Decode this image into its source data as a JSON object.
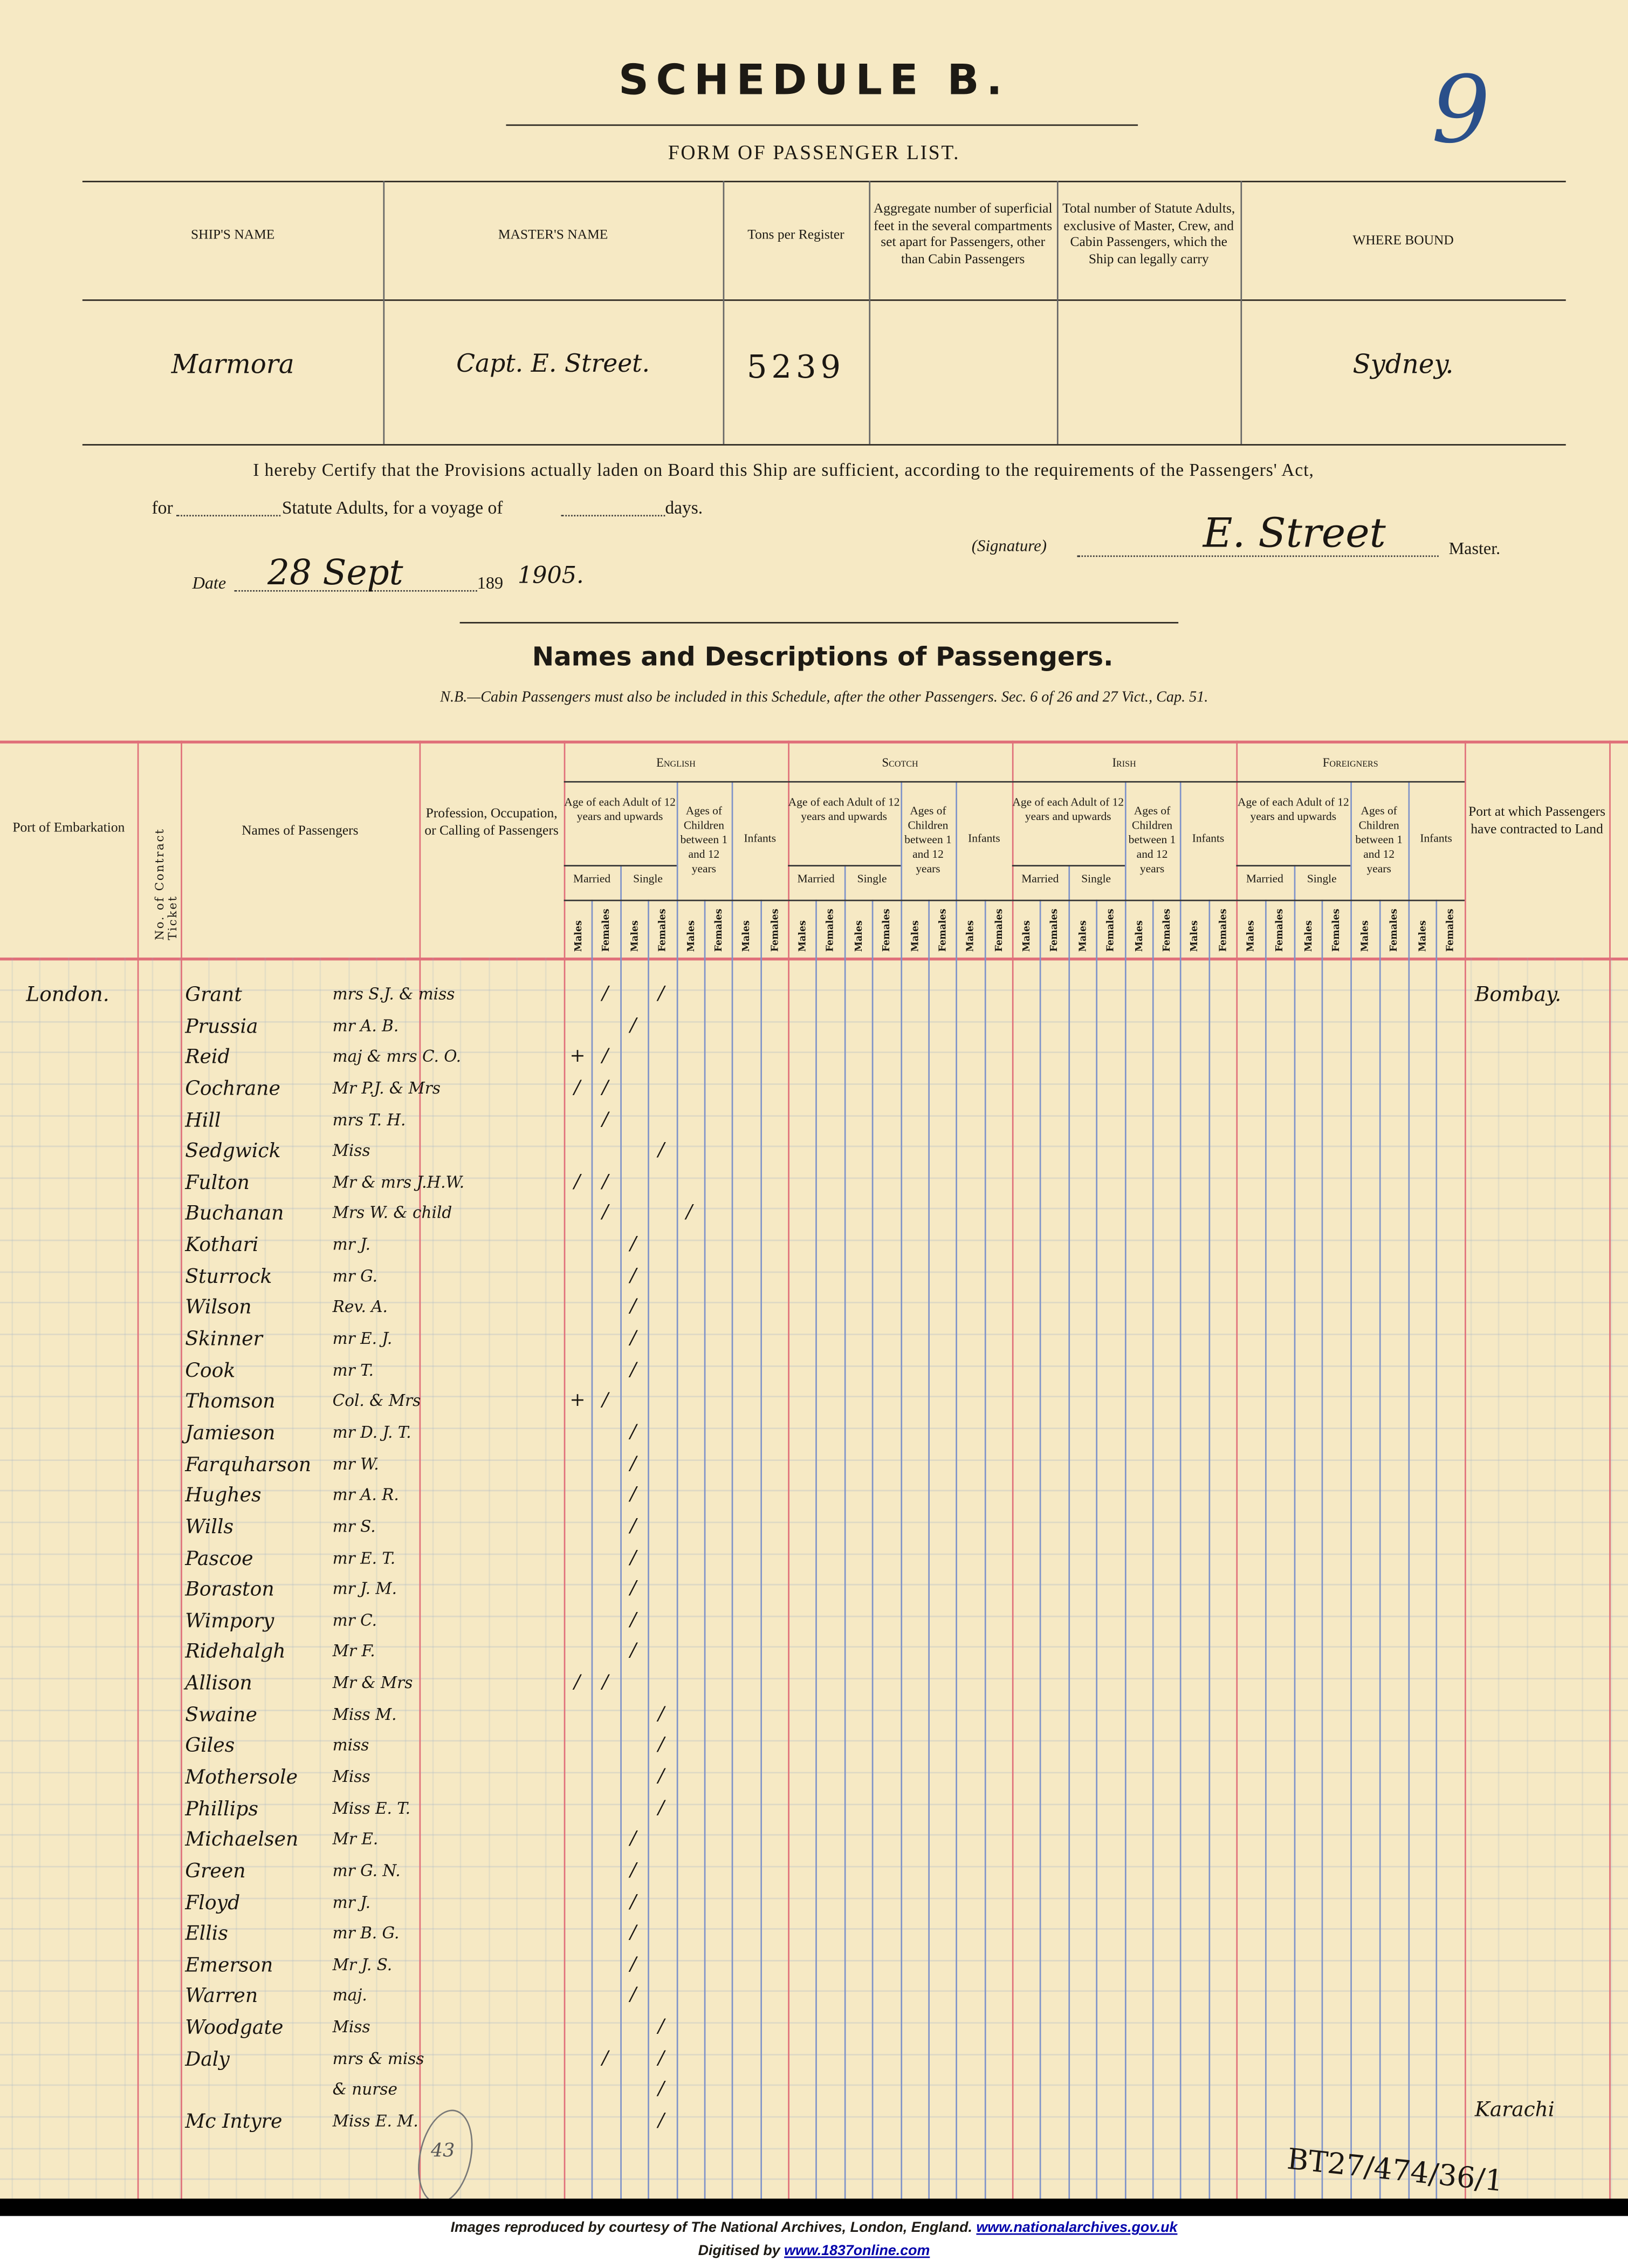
{
  "header": {
    "title": "SCHEDULE B.",
    "subtitle": "FORM OF PASSENGER LIST.",
    "folio_number": "9"
  },
  "ship_table": {
    "columns": [
      "SHIP'S NAME",
      "MASTER'S NAME",
      "Tons per Register",
      "Aggregate number of superficial feet in the several compartments set apart for Passengers, other than Cabin Passengers",
      "Total number of Statute Adults, exclusive of Master, Crew, and Cabin Passengers, which the Ship can legally carry",
      "WHERE BOUND"
    ],
    "values": [
      "Marmora",
      "Capt. E. Street.",
      "5239",
      "",
      "",
      "Sydney."
    ]
  },
  "certificate": {
    "line1": "I hereby Certify that the Provisions actually laden on Board this Ship are sufficient, according to the requirements of the Passengers' Act,",
    "for_label": "for",
    "statute_label": "Statute Adults, for a voyage of",
    "days_label": "days.",
    "signature_label": "(Signature)",
    "signature": "E. Street",
    "master_label": "Master.",
    "date_label": "Date",
    "date_value": "28 Sept",
    "year_prefix": "189",
    "year_value": "1905."
  },
  "passengers_section": {
    "title": "Names and Descriptions of Passengers.",
    "note": "N.B.—Cabin Passengers must also be included in this Schedule, after the other Passengers.  Sec. 6 of 26 and 27 Vict., Cap. 51."
  },
  "table_headers": {
    "port_embarkation": "Port of Embarkation",
    "ticket": "No. of Contract Ticket",
    "names": "Names of Passengers",
    "profession": "Profession, Occupation, or Calling of Passengers",
    "groups": [
      "English",
      "Scotch",
      "Irish",
      "Foreigners"
    ],
    "adult": "Age of each Adult of 12 years and upwards",
    "children": "Ages of Children between 1 and 12 years",
    "infants": "Infants",
    "married": "Married",
    "single": "Single",
    "males": "Males",
    "females": "Females",
    "port_land": "Port at which Passengers have contracted to Land"
  },
  "passengers": [
    {
      "port": "London.",
      "surname": "Grant",
      "given": "mrs S.J. & miss",
      "english": [
        1,
        3
      ],
      "land": "Bombay."
    },
    {
      "surname": "Prussia",
      "given": "mr A. B.",
      "english": [
        2
      ]
    },
    {
      "surname": "Reid",
      "given": "maj & mrs C. O.",
      "english": [
        1
      ],
      "struck": [
        0
      ]
    },
    {
      "surname": "Cochrane",
      "given": "Mr P.J. & Mrs",
      "english": [
        0,
        1
      ]
    },
    {
      "surname": "Hill",
      "given": "mrs T. H.",
      "english": [
        1
      ]
    },
    {
      "surname": "Sedgwick",
      "given": "Miss",
      "english": [
        3
      ]
    },
    {
      "surname": "Fulton",
      "given": "Mr & mrs J.H.W.",
      "english": [
        0,
        1
      ]
    },
    {
      "surname": "Buchanan",
      "given": "Mrs W. & child",
      "english": [
        1,
        4
      ]
    },
    {
      "surname": "Kothari",
      "given": "mr J.",
      "english": [
        2
      ]
    },
    {
      "surname": "Sturrock",
      "given": "mr G.",
      "english": [
        2
      ]
    },
    {
      "surname": "Wilson",
      "given": "Rev. A.",
      "english": [
        2
      ]
    },
    {
      "surname": "Skinner",
      "given": "mr E. J.",
      "english": [
        2
      ]
    },
    {
      "surname": "Cook",
      "given": "mr T.",
      "english": [
        2
      ]
    },
    {
      "surname": "Thomson",
      "given": "Col. & Mrs",
      "english": [
        1
      ],
      "struck": [
        0
      ]
    },
    {
      "surname": "Jamieson",
      "given": "mr D. J. T.",
      "english": [
        2
      ]
    },
    {
      "surname": "Farquharson",
      "given": "mr W.",
      "english": [
        2
      ]
    },
    {
      "surname": "Hughes",
      "given": "mr A. R.",
      "english": [
        2
      ]
    },
    {
      "surname": "Wills",
      "given": "mr S.",
      "english": [
        2
      ]
    },
    {
      "surname": "Pascoe",
      "given": "mr E. T.",
      "english": [
        2
      ]
    },
    {
      "surname": "Boraston",
      "given": "mr J. M.",
      "english": [
        2
      ]
    },
    {
      "surname": "Wimpory",
      "given": "mr C.",
      "english": [
        2
      ]
    },
    {
      "surname": "Ridehalgh",
      "given": "Mr F.",
      "english": [
        2
      ]
    },
    {
      "surname": "Allison",
      "given": "Mr & Mrs",
      "english": [
        0,
        1
      ]
    },
    {
      "surname": "Swaine",
      "given": "Miss M.",
      "english": [
        3
      ]
    },
    {
      "surname": "Giles",
      "given": "miss",
      "english": [
        3
      ]
    },
    {
      "surname": "Mothersole",
      "given": "Miss",
      "english": [
        3
      ]
    },
    {
      "surname": "Phillips",
      "given": "Miss E. T.",
      "english": [
        3
      ]
    },
    {
      "surname": "Michaelsen",
      "given": "Mr E.",
      "english": [
        2
      ]
    },
    {
      "surname": "Green",
      "given": "mr G. N.",
      "english": [
        2
      ]
    },
    {
      "surname": "Floyd",
      "given": "mr J.",
      "english": [
        2
      ]
    },
    {
      "surname": "Ellis",
      "given": "mr B. G.",
      "english": [
        2
      ]
    },
    {
      "surname": "Emerson",
      "given": "Mr J. S.",
      "english": [
        2
      ]
    },
    {
      "surname": "Warren",
      "given": "maj.",
      "english": [
        2
      ]
    },
    {
      "surname": "Woodgate",
      "given": "Miss",
      "english": [
        3
      ]
    },
    {
      "surname": "Daly",
      "given": "mrs & miss",
      "english": [
        1,
        3
      ]
    },
    {
      "surname": "",
      "given": "& nurse",
      "english": [
        3
      ]
    },
    {
      "surname": "Mc Intyre",
      "given": "Miss E. M.",
      "english": [
        3
      ],
      "land": "Karachi"
    }
  ],
  "annotations": {
    "circled_number": "43",
    "reference": "BT27/474/36/1"
  },
  "footer": {
    "line1": "Images reproduced by courtesy of The National Archives, London, England.",
    "link1": "www.nationalarchives.gov.uk",
    "line2": "Digitised by",
    "link2": "www.1837online.com"
  },
  "colors": {
    "paper": "#f6e9c4",
    "red_rule": "#e0707a",
    "blue_rule": "#7f93c9",
    "folio_ink": "#2a4f8a"
  }
}
